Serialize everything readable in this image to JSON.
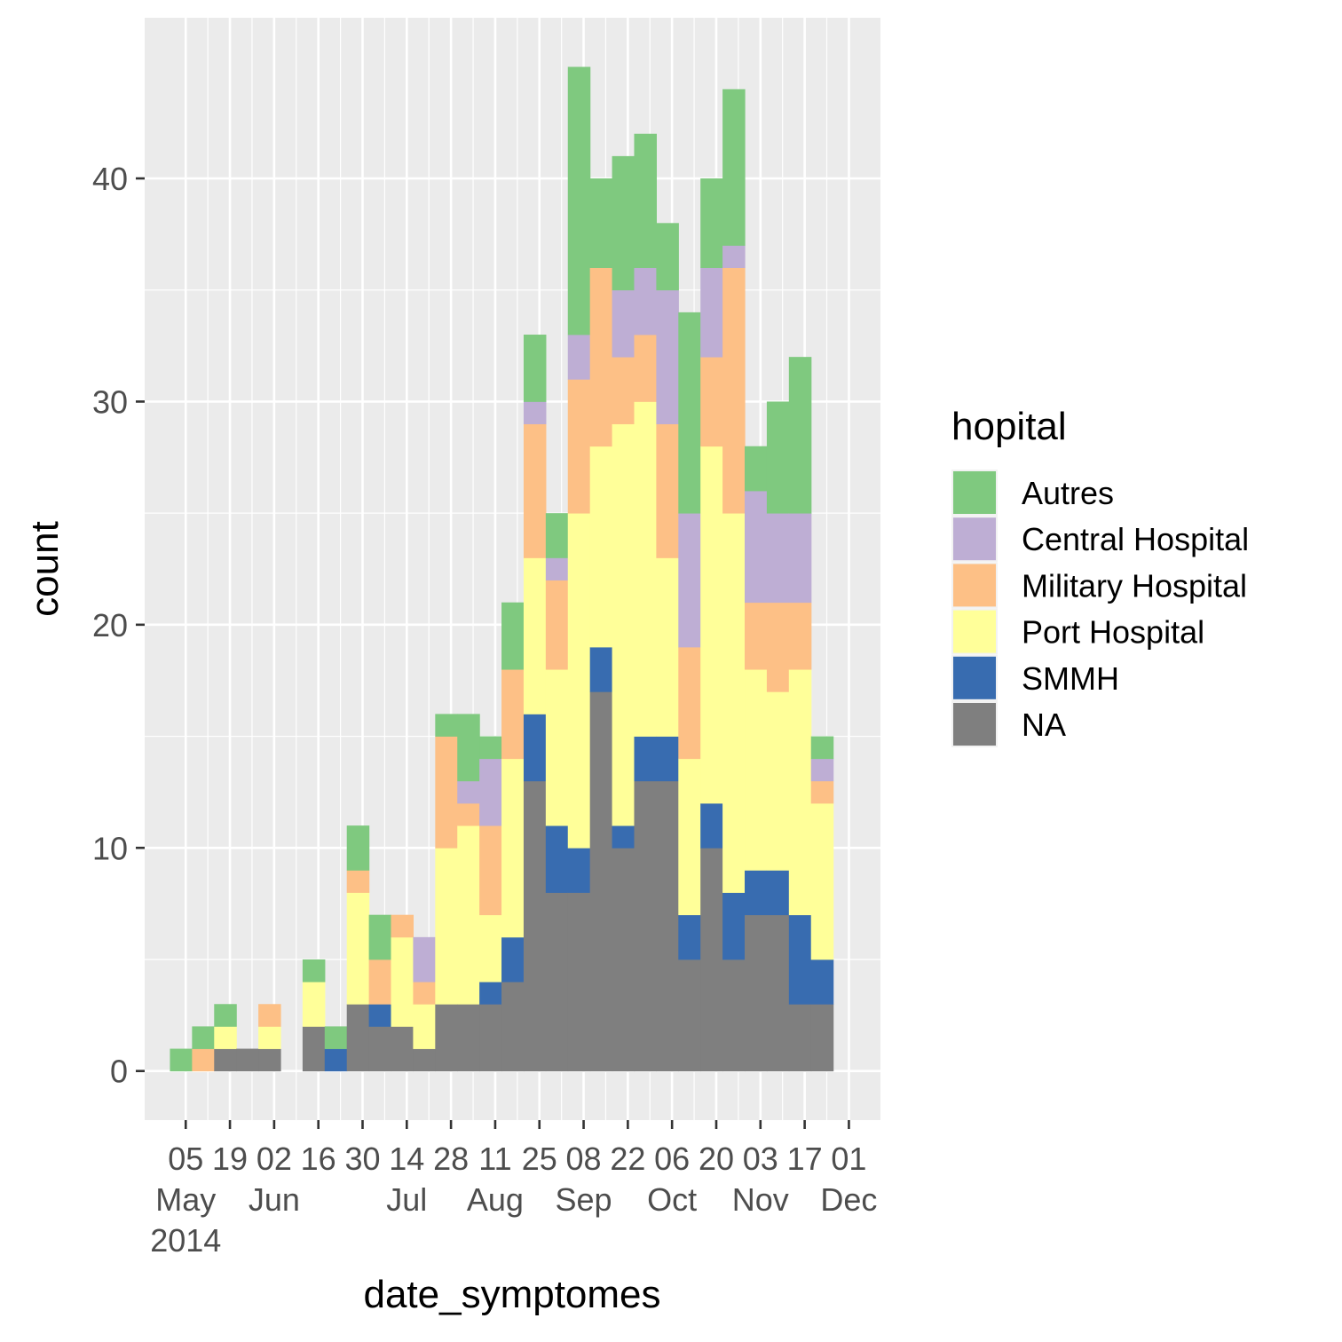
{
  "chart_data": {
    "type": "bar",
    "stacked": true,
    "xlabel": "date_symptomes",
    "ylabel": "count",
    "ylim": [
      -2.2,
      47.2
    ],
    "y_ticks": [
      0,
      10,
      20,
      30,
      40
    ],
    "x_unit_start": "2014-04-28",
    "bin_width_days": 7,
    "x_range_days": [
      -6,
      227
    ],
    "grid": true,
    "legend": {
      "title": "hopital",
      "position": "right",
      "entries": [
        {
          "name": "Autres",
          "color": "#7fc97f"
        },
        {
          "name": "Central Hospital",
          "color": "#beaed4"
        },
        {
          "name": "Military Hospital",
          "color": "#fdc086"
        },
        {
          "name": "Port Hospital",
          "color": "#ffff99"
        },
        {
          "name": "SMMH",
          "color": "#386cb0"
        },
        {
          "name": "NA",
          "color": "#7f7f7f"
        }
      ]
    },
    "x_ticks": [
      {
        "day": 7,
        "label": "05",
        "sub": "May",
        "sub2": "2014"
      },
      {
        "day": 21,
        "label": "19",
        "sub": "",
        "sub2": ""
      },
      {
        "day": 35,
        "label": "02",
        "sub": "Jun",
        "sub2": ""
      },
      {
        "day": 49,
        "label": "16",
        "sub": "",
        "sub2": ""
      },
      {
        "day": 63,
        "label": "30",
        "sub": "",
        "sub2": ""
      },
      {
        "day": 77,
        "label": "14",
        "sub": "Jul",
        "sub2": ""
      },
      {
        "day": 91,
        "label": "28",
        "sub": "",
        "sub2": ""
      },
      {
        "day": 105,
        "label": "11",
        "sub": "Aug",
        "sub2": ""
      },
      {
        "day": 119,
        "label": "25",
        "sub": "",
        "sub2": ""
      },
      {
        "day": 133,
        "label": "08",
        "sub": "Sep",
        "sub2": ""
      },
      {
        "day": 147,
        "label": "22",
        "sub": "",
        "sub2": ""
      },
      {
        "day": 161,
        "label": "06",
        "sub": "Oct",
        "sub2": ""
      },
      {
        "day": 175,
        "label": "20",
        "sub": "",
        "sub2": ""
      },
      {
        "day": 189,
        "label": "03",
        "sub": "Nov",
        "sub2": ""
      },
      {
        "day": 203,
        "label": "17",
        "sub": "",
        "sub2": ""
      },
      {
        "day": 217,
        "label": "01",
        "sub": "Dec",
        "sub2": ""
      }
    ],
    "series_order_bottom_to_top": [
      "NA",
      "SMMH",
      "Port Hospital",
      "Military Hospital",
      "Central Hospital",
      "Autres"
    ],
    "bins": [
      {
        "day": 5.5,
        "Autres": 1,
        "Central Hospital": 0,
        "Military Hospital": 0,
        "Port Hospital": 0,
        "SMMH": 0,
        "NA": 0
      },
      {
        "day": 12.5,
        "Autres": 1,
        "Central Hospital": 0,
        "Military Hospital": 1,
        "Port Hospital": 0,
        "SMMH": 0,
        "NA": 0
      },
      {
        "day": 19.5,
        "Autres": 1,
        "Central Hospital": 0,
        "Military Hospital": 0,
        "Port Hospital": 1,
        "SMMH": 0,
        "NA": 1
      },
      {
        "day": 26.5,
        "Autres": 0,
        "Central Hospital": 0,
        "Military Hospital": 0,
        "Port Hospital": 0,
        "SMMH": 0,
        "NA": 1
      },
      {
        "day": 33.5,
        "Autres": 0,
        "Central Hospital": 0,
        "Military Hospital": 1,
        "Port Hospital": 1,
        "SMMH": 0,
        "NA": 1
      },
      {
        "day": 40.5,
        "Autres": 0,
        "Central Hospital": 0,
        "Military Hospital": 0,
        "Port Hospital": 0,
        "SMMH": 0,
        "NA": 0
      },
      {
        "day": 47.5,
        "Autres": 1,
        "Central Hospital": 0,
        "Military Hospital": 0,
        "Port Hospital": 2,
        "SMMH": 0,
        "NA": 2
      },
      {
        "day": 54.5,
        "Autres": 1,
        "Central Hospital": 0,
        "Military Hospital": 0,
        "Port Hospital": 0,
        "SMMH": 1,
        "NA": 0
      },
      {
        "day": 61.5,
        "Autres": 2,
        "Central Hospital": 0,
        "Military Hospital": 1,
        "Port Hospital": 5,
        "SMMH": 0,
        "NA": 3
      },
      {
        "day": 68.5,
        "Autres": 2,
        "Central Hospital": 0,
        "Military Hospital": 2,
        "Port Hospital": 0,
        "SMMH": 1,
        "NA": 2
      },
      {
        "day": 75.5,
        "Autres": 0,
        "Central Hospital": 0,
        "Military Hospital": 1,
        "Port Hospital": 4,
        "SMMH": 0,
        "NA": 2
      },
      {
        "day": 82.5,
        "Autres": 0,
        "Central Hospital": 2,
        "Military Hospital": 1,
        "Port Hospital": 2,
        "SMMH": 0,
        "NA": 1
      },
      {
        "day": 89.5,
        "Autres": 1,
        "Central Hospital": 0,
        "Military Hospital": 5,
        "Port Hospital": 7,
        "SMMH": 0,
        "NA": 3
      },
      {
        "day": 96.5,
        "Autres": 3,
        "Central Hospital": 1,
        "Military Hospital": 1,
        "Port Hospital": 8,
        "SMMH": 0,
        "NA": 3
      },
      {
        "day": 103.5,
        "Autres": 1,
        "Central Hospital": 3,
        "Military Hospital": 4,
        "Port Hospital": 3,
        "SMMH": 1,
        "NA": 3
      },
      {
        "day": 110.5,
        "Autres": 3,
        "Central Hospital": 0,
        "Military Hospital": 4,
        "Port Hospital": 8,
        "SMMH": 2,
        "NA": 4
      },
      {
        "day": 117.5,
        "Autres": 3,
        "Central Hospital": 1,
        "Military Hospital": 6,
        "Port Hospital": 7,
        "SMMH": 3,
        "NA": 13
      },
      {
        "day": 124.5,
        "Autres": 2,
        "Central Hospital": 1,
        "Military Hospital": 4,
        "Port Hospital": 7,
        "SMMH": 3,
        "NA": 8
      },
      {
        "day": 131.5,
        "Autres": 12,
        "Central Hospital": 2,
        "Military Hospital": 6,
        "Port Hospital": 15,
        "SMMH": 2,
        "NA": 8
      },
      {
        "day": 138.5,
        "Autres": 4,
        "Central Hospital": 0,
        "Military Hospital": 8,
        "Port Hospital": 9,
        "SMMH": 2,
        "NA": 17
      },
      {
        "day": 145.5,
        "Autres": 6,
        "Central Hospital": 3,
        "Military Hospital": 3,
        "Port Hospital": 18,
        "SMMH": 1,
        "NA": 10
      },
      {
        "day": 152.5,
        "Autres": 6,
        "Central Hospital": 3,
        "Military Hospital": 3,
        "Port Hospital": 15,
        "SMMH": 2,
        "NA": 13
      },
      {
        "day": 159.5,
        "Autres": 3,
        "Central Hospital": 6,
        "Military Hospital": 6,
        "Port Hospital": 8,
        "SMMH": 2,
        "NA": 13
      },
      {
        "day": 166.5,
        "Autres": 9,
        "Central Hospital": 6,
        "Military Hospital": 5,
        "Port Hospital": 7,
        "SMMH": 2,
        "NA": 5
      },
      {
        "day": 173.5,
        "Autres": 4,
        "Central Hospital": 4,
        "Military Hospital": 4,
        "Port Hospital": 16,
        "SMMH": 2,
        "NA": 10
      },
      {
        "day": 180.5,
        "Autres": 7,
        "Central Hospital": 1,
        "Military Hospital": 11,
        "Port Hospital": 17,
        "SMMH": 3,
        "NA": 5
      },
      {
        "day": 187.5,
        "Autres": 2,
        "Central Hospital": 5,
        "Military Hospital": 3,
        "Port Hospital": 9,
        "SMMH": 2,
        "NA": 7
      },
      {
        "day": 194.5,
        "Autres": 5,
        "Central Hospital": 4,
        "Military Hospital": 4,
        "Port Hospital": 8,
        "SMMH": 2,
        "NA": 7
      },
      {
        "day": 201.5,
        "Autres": 7,
        "Central Hospital": 4,
        "Military Hospital": 3,
        "Port Hospital": 11,
        "SMMH": 4,
        "NA": 3
      },
      {
        "day": 208.5,
        "Autres": 1,
        "Central Hospital": 1,
        "Military Hospital": 1,
        "Port Hospital": 7,
        "SMMH": 2,
        "NA": 3
      }
    ]
  }
}
